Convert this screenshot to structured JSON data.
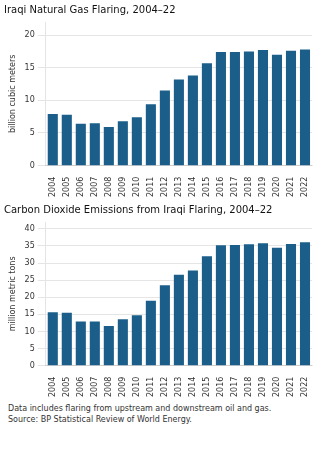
{
  "chart_data": [
    {
      "type": "bar",
      "title": "Iraqi Natural Gas Flaring, 2004–22",
      "y_label": "billion cubic meters",
      "categories": [
        "2004",
        "2005",
        "2006",
        "2007",
        "2008",
        "2009",
        "2010",
        "2011",
        "2012",
        "2013",
        "2014",
        "2015",
        "2016",
        "2017",
        "2018",
        "2019",
        "2020",
        "2021",
        "2022"
      ],
      "values": [
        7.9,
        7.8,
        6.4,
        6.5,
        5.9,
        6.8,
        7.4,
        9.4,
        11.5,
        13.2,
        13.8,
        15.7,
        17.4,
        17.4,
        17.5,
        17.7,
        17.0,
        17.6,
        17.8
      ],
      "color": "#1b5e8a",
      "ylim": [
        0,
        22
      ],
      "yticks": [
        0,
        5,
        10,
        15,
        20
      ],
      "grid": true
    },
    {
      "type": "bar",
      "title": "Carbon Dioxide Emissions from Iraqi Flaring, 2004–22",
      "y_label": "million metric tons",
      "categories": [
        "2004",
        "2005",
        "2006",
        "2007",
        "2008",
        "2009",
        "2010",
        "2011",
        "2012",
        "2013",
        "2014",
        "2015",
        "2016",
        "2017",
        "2018",
        "2019",
        "2020",
        "2021",
        "2022"
      ],
      "values": [
        15.6,
        15.5,
        12.9,
        12.9,
        11.6,
        13.6,
        14.7,
        19.0,
        23.5,
        26.6,
        27.8,
        32.0,
        35.2,
        35.3,
        35.5,
        35.8,
        34.5,
        35.6,
        36.1
      ],
      "color": "#1b5e8a",
      "ylim": [
        0,
        42
      ],
      "yticks": [
        0,
        5,
        10,
        15,
        20,
        25,
        30,
        35,
        40
      ],
      "grid": true,
      "annotations": [
        "Data includes flaring from upstream and downstream oil and gas.",
        "Source: BP Statistical Review of World Energy."
      ]
    }
  ]
}
